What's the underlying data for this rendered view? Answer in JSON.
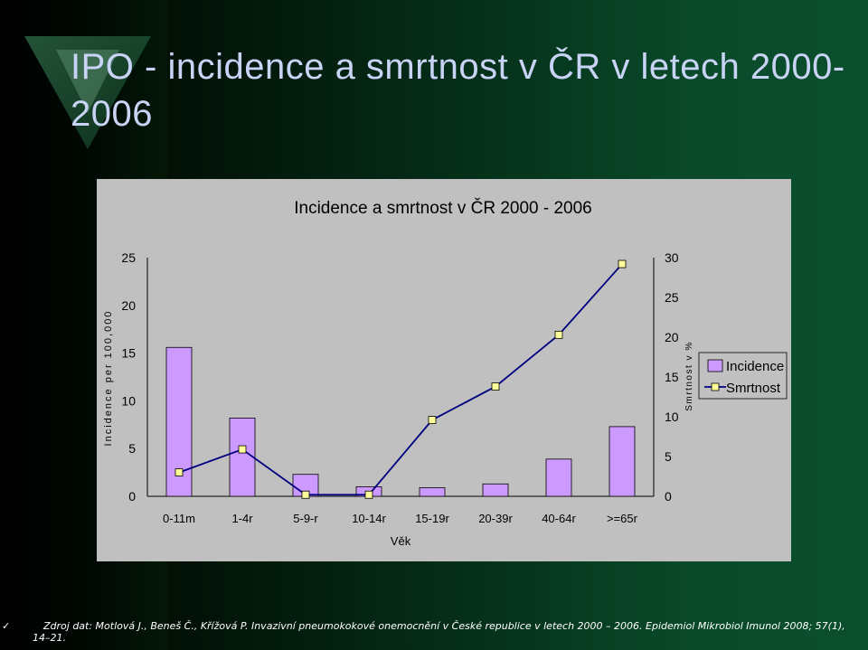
{
  "slide": {
    "title": "IPO - incidence a smrtnost v ČR v letech 2000-2006",
    "source_bullet": "✓",
    "source": "Zdroj dat: Motlová J., Beneš Č., Křížová P. Invazivní pneumokokové onemocnění v České republice v letech 2000 – 2006. Epidemiol Mikrobiol Imunol 2008; 57(1), 14–21."
  },
  "colors": {
    "bar_fill": "#cc99ff",
    "line": "#000080",
    "marker": "#ffff99",
    "panel": "#c0c0c0",
    "title": "#c9d3f5"
  },
  "chart_data": {
    "type": "bar",
    "title": "Incidence a smrtnost v ČR 2000 - 2006",
    "xlabel": "Věk",
    "ylabel": "Incidence per 100,000",
    "y2label": "Smrtnost v %",
    "categories": [
      "0-11m",
      "1-4r",
      "5-9-r",
      "10-14r",
      "15-19r",
      "20-39r",
      "40-64r",
      ">=65r"
    ],
    "ylim": [
      0,
      25
    ],
    "yticks": [
      "0",
      "5",
      "10",
      "15",
      "20",
      "25"
    ],
    "y2lim": [
      0,
      30
    ],
    "y2ticks": [
      "0",
      "5",
      "10",
      "15",
      "20",
      "25",
      "30"
    ],
    "series": [
      {
        "name": "Incidence",
        "type": "bar",
        "axis": "left",
        "values": [
          15.6,
          8.2,
          2.3,
          1.0,
          0.9,
          1.3,
          3.9,
          7.3
        ]
      },
      {
        "name": "Smrtnost",
        "type": "line",
        "axis": "right",
        "values": [
          3.0,
          5.9,
          0.2,
          0.2,
          9.6,
          13.8,
          20.3,
          29.2
        ]
      }
    ],
    "legend_position": "right"
  }
}
